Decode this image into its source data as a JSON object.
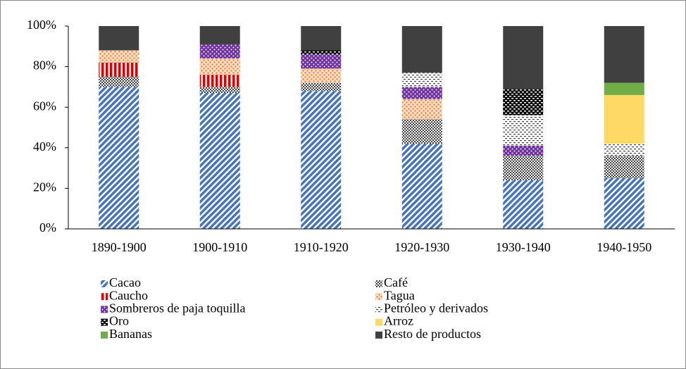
{
  "chart_data": {
    "type": "stacked_bar",
    "categories": [
      "1890-1900",
      "1900-1910",
      "1910-1920",
      "1920-1930",
      "1930-1940",
      "1940-1950"
    ],
    "series": [
      {
        "name": "Cacao",
        "color": "#4472c4",
        "values": [
          70,
          67,
          68,
          42,
          24,
          25
        ]
      },
      {
        "name": "Café",
        "color": "#404040",
        "values": [
          5,
          3,
          4,
          12,
          12,
          11
        ]
      },
      {
        "name": "Caucho",
        "color": "#e00000",
        "values": [
          7,
          6,
          0,
          0,
          0,
          0
        ]
      },
      {
        "name": "Tagua",
        "color": "#ed7d31",
        "values": [
          6,
          8,
          7,
          10,
          0,
          0
        ]
      },
      {
        "name": "Sombreros de paja toquilla",
        "color": "#7030a0",
        "values": [
          0,
          7,
          7,
          6,
          5,
          0
        ]
      },
      {
        "name": "Petróleo y derivados",
        "color": "#404040",
        "values": [
          0,
          0,
          0,
          7,
          15,
          6
        ]
      },
      {
        "name": "Oro",
        "color": "#000000",
        "values": [
          0,
          0,
          2,
          0,
          13,
          0
        ]
      },
      {
        "name": "Arroz",
        "color": "#ffd966",
        "values": [
          0,
          0,
          0,
          0,
          0,
          24
        ]
      },
      {
        "name": "Bananas",
        "color": "#70ad47",
        "values": [
          0,
          0,
          0,
          0,
          0,
          6
        ]
      },
      {
        "name": "Resto de productos",
        "color": "#404040",
        "values": [
          12,
          9,
          12,
          23,
          31,
          28
        ]
      }
    ],
    "ylim": [
      0,
      100
    ],
    "yticks": [
      {
        "value": 0,
        "label": "0%"
      },
      {
        "value": 20,
        "label": "20%"
      },
      {
        "value": 40,
        "label": "40%"
      },
      {
        "value": 60,
        "label": "60%"
      },
      {
        "value": 80,
        "label": "80%"
      },
      {
        "value": 100,
        "label": "100%"
      }
    ]
  }
}
